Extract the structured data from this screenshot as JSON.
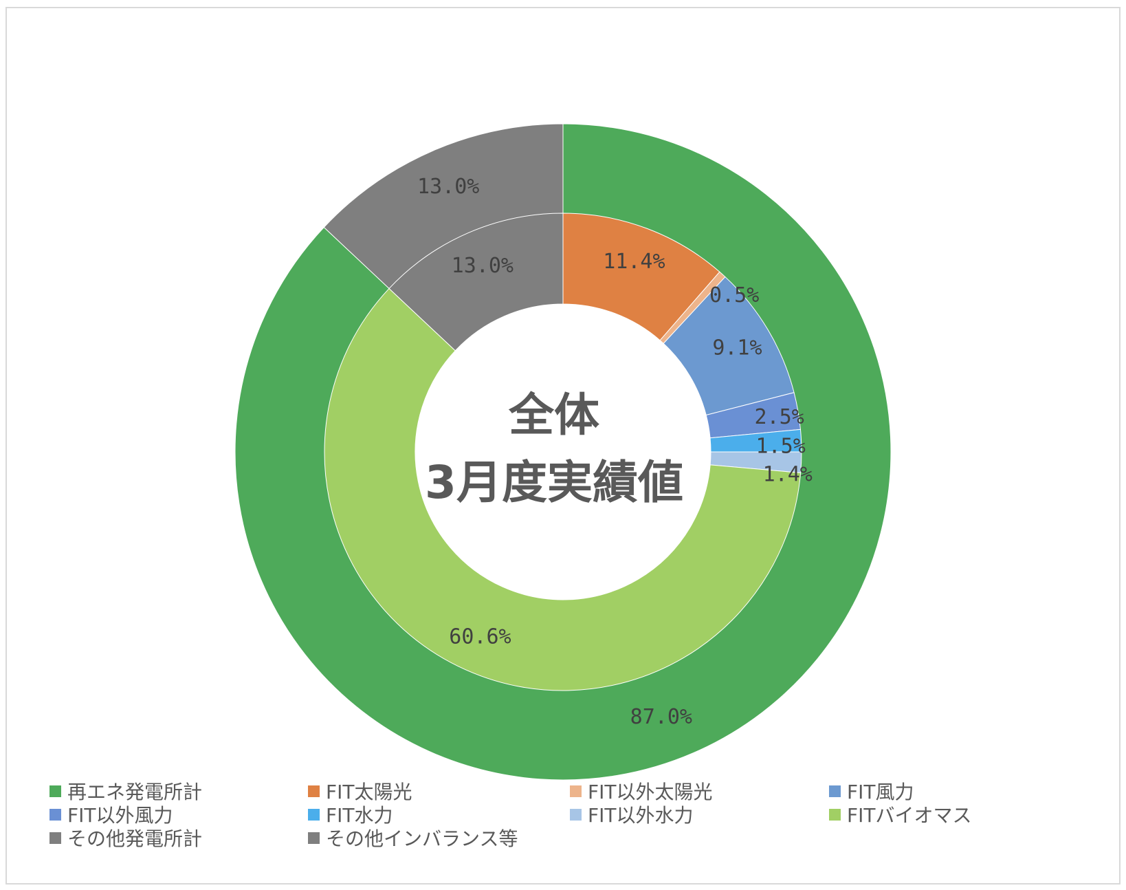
{
  "chart_data": {
    "type": "pie",
    "subtype": "double-doughnut",
    "center_title": [
      "全体",
      "3月度実績値"
    ],
    "rings": [
      {
        "ring": "outer",
        "slices": [
          {
            "label": "再エネ発電所計",
            "value": 87.0,
            "display": "87.0%",
            "color": "#4EAA5A"
          },
          {
            "label": "その他発電所計",
            "value": 13.0,
            "display": "13.0%",
            "color": "#7F7F7F"
          }
        ]
      },
      {
        "ring": "inner",
        "slices": [
          {
            "label": "FIT太陽光",
            "value": 11.4,
            "display": "11.4%",
            "color": "#DF8143"
          },
          {
            "label": "FIT以外太陽光",
            "value": 0.5,
            "display": "0.5%",
            "color": "#EDB48B"
          },
          {
            "label": "FIT風力",
            "value": 9.1,
            "display": "9.1%",
            "color": "#6C99D0"
          },
          {
            "label": "FIT以外風力",
            "value": 2.5,
            "display": "2.5%",
            "color": "#6A90D4"
          },
          {
            "label": "FIT水力",
            "value": 1.5,
            "display": "1.5%",
            "color": "#4BAEEB"
          },
          {
            "label": "FIT以外水力",
            "value": 1.4,
            "display": "1.4%",
            "color": "#A7C5E6"
          },
          {
            "label": "FITバイオマス",
            "value": 60.6,
            "display": "60.6%",
            "color": "#A1CF64"
          },
          {
            "label": "その他インバランス等",
            "value": 13.0,
            "display": "13.0%",
            "color": "#7F7F7F"
          }
        ]
      }
    ],
    "legend": {
      "placement": "bottom",
      "items": [
        {
          "label": "再エネ発電所計",
          "color": "#4EAA5A"
        },
        {
          "label": "FIT太陽光",
          "color": "#DF8143"
        },
        {
          "label": "FIT以外太陽光",
          "color": "#EDB48B"
        },
        {
          "label": "FIT風力",
          "color": "#6C99D0"
        },
        {
          "label": "FIT以外風力",
          "color": "#6A90D4"
        },
        {
          "label": "FIT水力",
          "color": "#4BAEEB"
        },
        {
          "label": "FIT以外水力",
          "color": "#A7C5E6"
        },
        {
          "label": "FITバイオマス",
          "color": "#A1CF64"
        },
        {
          "label": "その他発電所計",
          "color": "#7F7F7F"
        },
        {
          "label": "その他インバランス等",
          "color": "#7F7F7F"
        }
      ]
    }
  }
}
